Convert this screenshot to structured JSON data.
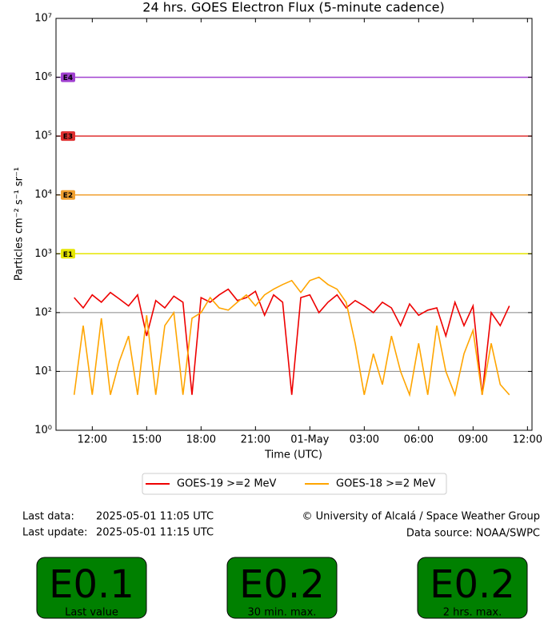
{
  "chart_data": {
    "type": "line",
    "title": "24 hrs. GOES Electron Flux (5-minute cadence)",
    "xlabel": "Time (UTC)",
    "ylabel": "Particles cm⁻² s⁻¹ sr⁻¹",
    "log_y": true,
    "xlim": [
      10,
      36.25
    ],
    "xticks": [
      {
        "value": 12,
        "label": "12:00"
      },
      {
        "value": 15,
        "label": "15:00"
      },
      {
        "value": 18,
        "label": "18:00"
      },
      {
        "value": 21,
        "label": "21:00"
      },
      {
        "value": 24,
        "label": "01-May"
      },
      {
        "value": 27,
        "label": "03:00"
      },
      {
        "value": 30,
        "label": "06:00"
      },
      {
        "value": 33,
        "label": "09:00"
      },
      {
        "value": 36,
        "label": "12:00"
      }
    ],
    "ylim": [
      1,
      10000000
    ],
    "yticks": [
      {
        "value": 1,
        "label": "10⁰"
      },
      {
        "value": 10,
        "label": "10¹"
      },
      {
        "value": 100,
        "label": "10²"
      },
      {
        "value": 1000,
        "label": "10³"
      },
      {
        "value": 10000,
        "label": "10⁴"
      },
      {
        "value": 100000,
        "label": "10⁵"
      },
      {
        "value": 1000000,
        "label": "10⁶"
      },
      {
        "value": 10000000,
        "label": "10⁷"
      }
    ],
    "hlines": [
      {
        "value": 10,
        "color": "#888888"
      },
      {
        "value": 100,
        "color": "#888888"
      }
    ],
    "thresholds": [
      {
        "label": "E1",
        "value": 1000,
        "color": "#e6e600"
      },
      {
        "label": "E2",
        "value": 10000,
        "color": "#f0a030"
      },
      {
        "label": "E3",
        "value": 100000,
        "color": "#e03030"
      },
      {
        "label": "E4",
        "value": 1000000,
        "color": "#a040d0"
      }
    ],
    "x": [
      11,
      11.5,
      12,
      12.5,
      13,
      13.5,
      14,
      14.5,
      15,
      15.5,
      16,
      16.5,
      17,
      17.5,
      18,
      18.5,
      19,
      19.5,
      20,
      20.5,
      21,
      21.5,
      22,
      22.5,
      23,
      23.5,
      24,
      24.5,
      25,
      25.5,
      26,
      26.5,
      27,
      27.5,
      28,
      28.5,
      29,
      29.5,
      30,
      30.5,
      31,
      31.5,
      32,
      32.5,
      33,
      33.5,
      34,
      34.5,
      35
    ],
    "series": [
      {
        "name": "GOES-19 >=2 MeV",
        "color": "#ee0000",
        "values": [
          180,
          120,
          200,
          150,
          220,
          170,
          130,
          200,
          40,
          160,
          120,
          190,
          150,
          4,
          180,
          150,
          200,
          250,
          160,
          180,
          230,
          90,
          200,
          150,
          4,
          180,
          200,
          100,
          150,
          200,
          120,
          160,
          130,
          100,
          150,
          120,
          60,
          140,
          90,
          110,
          120,
          40,
          150,
          60,
          130,
          4,
          100,
          60,
          130
        ]
      },
      {
        "name": "GOES-18 >=2 MeV",
        "color": "#ffa500",
        "values": [
          4,
          60,
          4,
          80,
          4,
          15,
          40,
          4,
          90,
          4,
          60,
          100,
          4,
          80,
          100,
          180,
          120,
          110,
          150,
          200,
          130,
          200,
          250,
          300,
          350,
          220,
          350,
          400,
          300,
          250,
          150,
          30,
          4,
          20,
          6,
          40,
          10,
          4,
          30,
          4,
          60,
          10,
          4,
          20,
          50,
          4,
          30,
          6,
          4
        ]
      }
    ],
    "legend": "lower center"
  },
  "info": {
    "last_data_label": "Last data:",
    "last_data": "2025-05-01 11:05 UTC",
    "last_update_label": "Last update:",
    "last_update": "2025-05-01 11:15 UTC",
    "credit": "© University of Alcalá / Space Weather Group",
    "source": "Data source: NOAA/SWPC"
  },
  "status_boxes": [
    {
      "value": "E0.1",
      "label": "Last value"
    },
    {
      "value": "E0.2",
      "label": "30 min. max."
    },
    {
      "value": "E0.2",
      "label": "2 hrs. max."
    }
  ]
}
